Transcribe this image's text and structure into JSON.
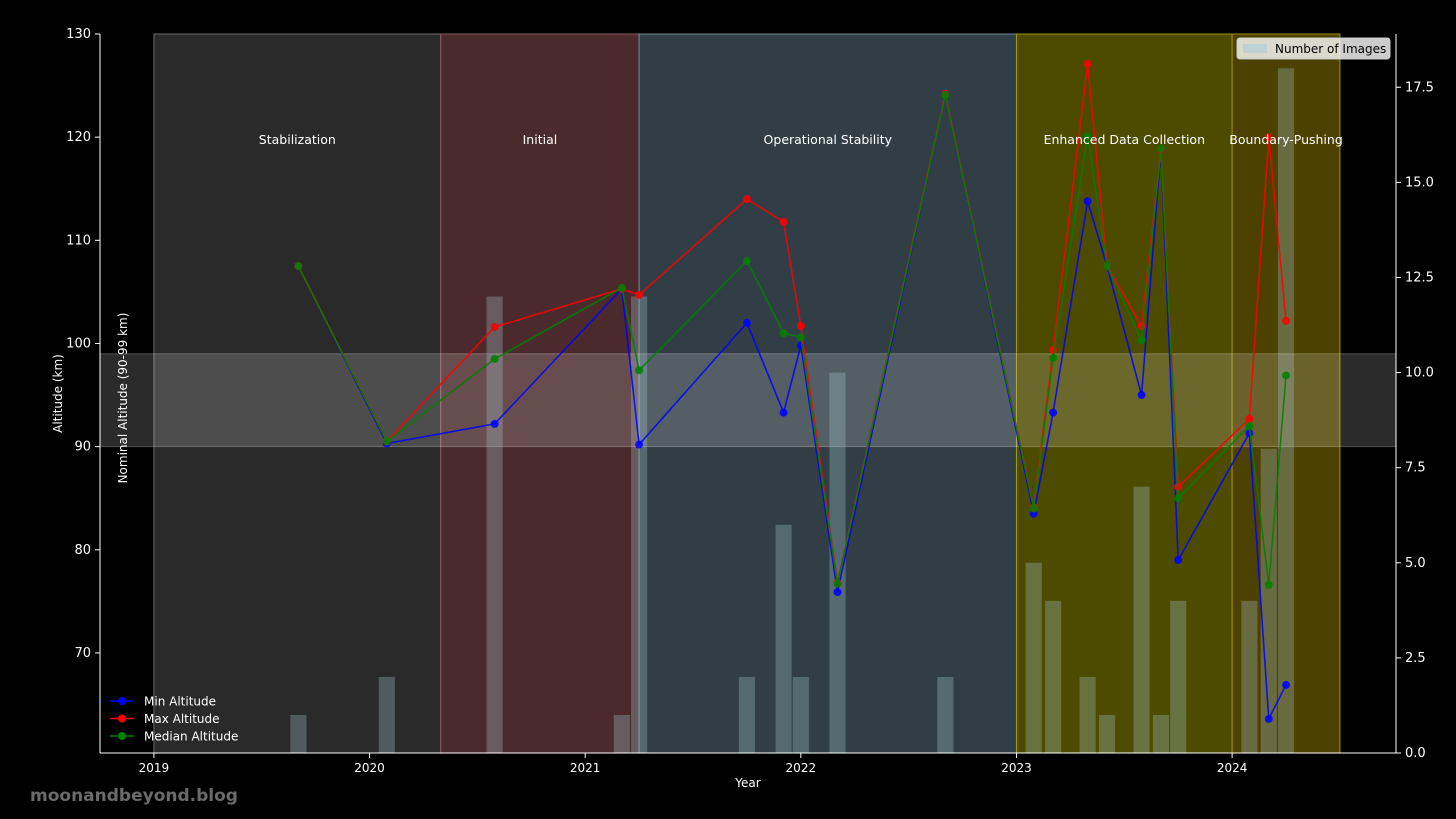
{
  "watermark": "moonandbeyond.blog",
  "chart_data": {
    "type": "line",
    "title": "",
    "xlabel": "Year",
    "ylabel": "Altitude (km)",
    "y2label": "",
    "xlim": [
      2018.75,
      2024.76
    ],
    "ylim": [
      60.3,
      130
    ],
    "y2lim": [
      0,
      18.9
    ],
    "x_ticks": [
      "2019",
      "2020",
      "2021",
      "2022",
      "2023",
      "2024"
    ],
    "y_ticks": [
      70,
      80,
      90,
      100,
      110,
      120,
      130
    ],
    "y2_ticks": [
      "0.0",
      "2.5",
      "5.0",
      "7.5",
      "10.0",
      "12.5",
      "15.0",
      "17.5"
    ],
    "nominal_band": {
      "label": "Nominal Altitude (90-99 km)",
      "from": 90,
      "to": 99
    },
    "phases": [
      {
        "label": "Stabilization",
        "start": 2019.0,
        "end": 2020.33,
        "color": "#2a2a2a"
      },
      {
        "label": "Initial",
        "start": 2020.33,
        "end": 2021.25,
        "color": "#4a2a2c"
      },
      {
        "label": "Operational Stability",
        "start": 2021.25,
        "end": 2023.0,
        "color": "#323e46"
      },
      {
        "label": "Enhanced Data Collection",
        "start": 2023.0,
        "end": 2024.0,
        "color": "#4c4b00"
      },
      {
        "label": "Boundary-Pushing",
        "start": 2024.0,
        "end": 2024.5,
        "color": "#4d4100"
      }
    ],
    "legend_placement": "lower-left",
    "bar_legend": {
      "label": "Number of Images",
      "placement": "upper-right"
    },
    "x": [
      2019.67,
      2020.08,
      2020.58,
      2021.17,
      2021.25,
      2021.75,
      2021.92,
      2022.0,
      2022.17,
      2022.67,
      2023.08,
      2023.17,
      2023.33,
      2023.42,
      2023.58,
      2023.67,
      2023.75,
      2024.08,
      2024.17,
      2024.25
    ],
    "series": [
      {
        "name": "Min Altitude",
        "color": "#0000ff",
        "values": [
          107.5,
          90.3,
          92.2,
          105.3,
          90.2,
          102.0,
          93.3,
          99.8,
          75.9,
          124.2,
          83.5,
          93.3,
          113.8,
          107.5,
          95.0,
          118.8,
          79.0,
          91.3,
          63.6,
          66.9
        ]
      },
      {
        "name": "Max Altitude",
        "color": "#ff0000",
        "values": [
          107.5,
          90.5,
          101.6,
          105.3,
          104.7,
          114.0,
          111.8,
          101.7,
          76.8,
          124.2,
          84.1,
          99.4,
          127.1,
          107.5,
          101.7,
          118.8,
          86.1,
          92.7,
          120.0,
          102.2
        ]
      },
      {
        "name": "Median Altitude",
        "color": "#008000",
        "values": [
          107.5,
          90.5,
          98.5,
          105.4,
          97.4,
          108.0,
          101.0,
          100.6,
          76.7,
          124.1,
          84.0,
          98.6,
          120.1,
          107.5,
          100.3,
          118.9,
          85.0,
          92.0,
          76.6,
          96.9
        ]
      }
    ],
    "bars": {
      "name": "Number of Images",
      "color": "#a8ccd8",
      "width_years": 0.075,
      "x": [
        2019.67,
        2020.08,
        2020.58,
        2021.17,
        2021.25,
        2021.75,
        2021.92,
        2022.0,
        2022.17,
        2022.67,
        2023.08,
        2023.17,
        2023.33,
        2023.42,
        2023.58,
        2023.67,
        2023.75,
        2024.08,
        2024.17,
        2024.25
      ],
      "values": [
        1,
        2,
        12,
        1,
        12,
        2,
        6,
        2,
        10,
        2,
        5,
        4,
        2,
        1,
        7,
        1,
        4,
        4,
        8,
        18
      ]
    }
  }
}
